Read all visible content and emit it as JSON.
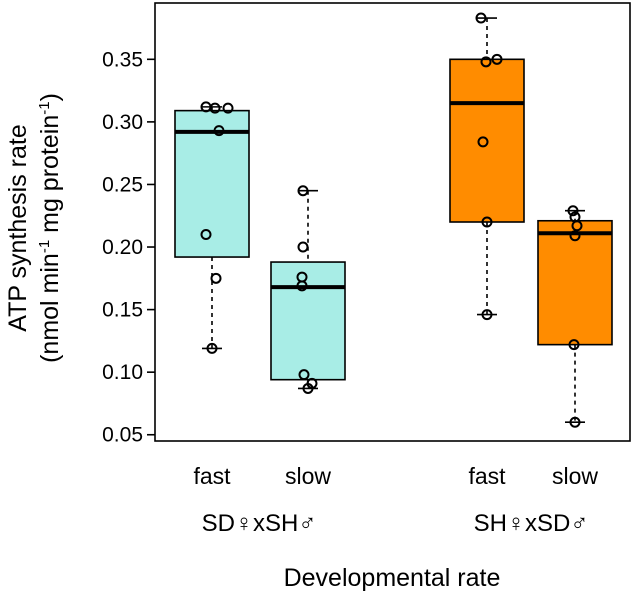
{
  "chart_data": {
    "type": "boxplot",
    "title": "",
    "xlabel": "Developmental rate",
    "ylabel_line1": "ATP synthesis rate",
    "ylabel_line2_prefix": "(nmol min",
    "ylabel_sup1": "-1",
    "ylabel_line2_mid": " mg protein",
    "ylabel_sup2": "-1",
    "ylabel_line2_suffix": ")",
    "ylim": [
      0.045,
      0.395
    ],
    "yticks": [
      0.05,
      0.1,
      0.15,
      0.2,
      0.25,
      0.3,
      0.35
    ],
    "ytick_labels": [
      "0.05",
      "0.10",
      "0.15",
      "0.20",
      "0.25",
      "0.30",
      "0.35"
    ],
    "groups": [
      {
        "name": "SD♀xSH♂",
        "color": "#a8ede6",
        "categories": [
          {
            "label": "fast",
            "q1": 0.192,
            "median": 0.292,
            "q3": 0.309,
            "whisker_low": 0.119,
            "whisker_high": 0.312,
            "points": [
              0.312,
              0.311,
              0.311,
              0.293,
              0.21,
              0.175,
              0.119
            ]
          },
          {
            "label": "slow",
            "q1": 0.094,
            "median": 0.168,
            "q3": 0.188,
            "whisker_low": 0.087,
            "whisker_high": 0.245,
            "points": [
              0.245,
              0.2,
              0.176,
              0.169,
              0.098,
              0.091,
              0.087
            ]
          }
        ]
      },
      {
        "name": "SH♀xSD♂",
        "color": "#ff8c00",
        "categories": [
          {
            "label": "fast",
            "q1": 0.22,
            "median": 0.315,
            "q3": 0.35,
            "whisker_low": 0.146,
            "whisker_high": 0.383,
            "points": [
              0.383,
              0.35,
              0.348,
              0.284,
              0.22,
              0.146
            ]
          },
          {
            "label": "slow",
            "q1": 0.122,
            "median": 0.211,
            "q3": 0.221,
            "whisker_low": 0.06,
            "whisker_high": 0.229,
            "points": [
              0.229,
              0.224,
              0.217,
              0.209,
              0.122,
              0.06
            ]
          }
        ]
      }
    ]
  }
}
